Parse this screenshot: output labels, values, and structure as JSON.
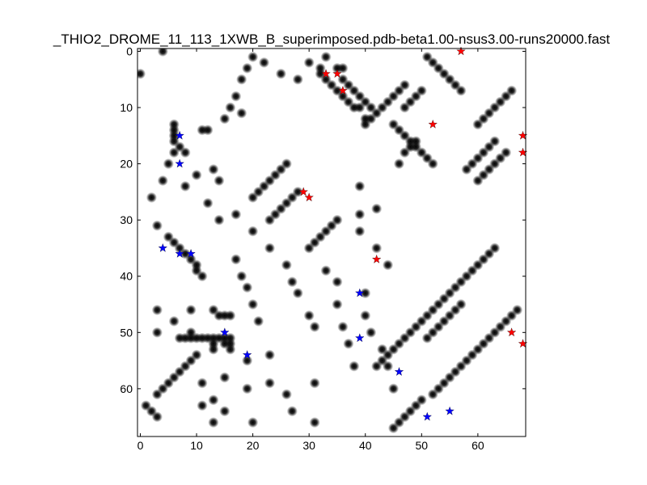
{
  "chart_data": {
    "type": "heatmap",
    "title": "_THIO2_DROME_11_113_1XWB_B_superimposed.pdb-beta1.00-nsus3.00-runs20000.fast",
    "xlim": [
      -0.5,
      68.5
    ],
    "ylim": [
      68.5,
      -0.5
    ],
    "y_inverted": true,
    "grid": false,
    "x_ticks": [
      0,
      10,
      20,
      30,
      40,
      50,
      60
    ],
    "y_ticks": [
      0,
      10,
      20,
      30,
      40,
      50,
      60
    ],
    "colormap": "gray_r",
    "contact_color": "#000000",
    "marker_colors": {
      "red": "#ff0000",
      "blue": "#0000ff"
    },
    "contacts": [
      [
        0,
        4
      ],
      [
        4,
        0
      ],
      [
        6,
        13
      ],
      [
        6,
        14
      ],
      [
        6,
        15
      ],
      [
        6,
        16
      ],
      [
        7,
        17
      ],
      [
        8,
        18
      ],
      [
        11,
        14
      ],
      [
        12,
        14
      ],
      [
        13,
        21
      ],
      [
        14,
        23
      ],
      [
        3,
        31
      ],
      [
        5,
        33
      ],
      [
        6,
        34
      ],
      [
        7,
        35
      ],
      [
        8,
        36
      ],
      [
        9,
        37
      ],
      [
        10,
        38
      ],
      [
        10,
        39
      ],
      [
        11,
        40
      ],
      [
        13,
        46
      ],
      [
        14,
        47
      ],
      [
        15,
        47
      ],
      [
        16,
        47
      ],
      [
        3,
        61
      ],
      [
        4,
        60
      ],
      [
        5,
        59
      ],
      [
        6,
        58
      ],
      [
        7,
        57
      ],
      [
        8,
        56
      ],
      [
        9,
        55
      ],
      [
        10,
        54
      ],
      [
        3,
        65
      ],
      [
        2,
        64
      ],
      [
        1,
        63
      ],
      [
        7,
        51
      ],
      [
        8,
        51
      ],
      [
        9,
        51
      ],
      [
        10,
        51
      ],
      [
        11,
        51
      ],
      [
        12,
        51
      ],
      [
        13,
        51
      ],
      [
        14,
        51
      ],
      [
        15,
        51
      ],
      [
        16,
        51
      ],
      [
        13,
        52
      ],
      [
        15,
        52
      ],
      [
        16,
        52
      ],
      [
        13,
        53
      ],
      [
        16,
        53
      ],
      [
        32,
        3
      ],
      [
        32,
        4
      ],
      [
        33,
        5
      ],
      [
        34,
        6
      ],
      [
        35,
        7
      ],
      [
        36,
        8
      ],
      [
        37,
        9
      ],
      [
        38,
        10
      ],
      [
        39,
        10
      ],
      [
        40,
        12
      ],
      [
        36,
        3
      ],
      [
        36,
        5
      ],
      [
        37,
        6
      ],
      [
        38,
        7
      ],
      [
        39,
        8
      ],
      [
        40,
        9
      ],
      [
        41,
        10
      ],
      [
        47,
        10
      ],
      [
        48,
        9
      ],
      [
        49,
        8
      ],
      [
        50,
        7
      ],
      [
        45,
        13
      ],
      [
        46,
        14
      ],
      [
        47,
        15
      ],
      [
        48,
        16
      ],
      [
        49,
        17
      ],
      [
        50,
        18
      ],
      [
        51,
        19
      ],
      [
        52,
        20
      ],
      [
        46,
        20
      ],
      [
        47,
        18
      ],
      [
        48,
        17
      ],
      [
        49,
        16
      ],
      [
        63,
        35
      ],
      [
        62,
        36
      ],
      [
        61,
        37
      ],
      [
        60,
        38
      ],
      [
        59,
        39
      ],
      [
        58,
        40
      ],
      [
        57,
        41
      ],
      [
        56,
        42
      ],
      [
        55,
        43
      ],
      [
        54,
        44
      ],
      [
        53,
        45
      ],
      [
        52,
        46
      ],
      [
        51,
        47
      ],
      [
        50,
        48
      ],
      [
        49,
        49
      ],
      [
        48,
        50
      ],
      [
        47,
        51
      ],
      [
        46,
        52
      ],
      [
        45,
        53
      ],
      [
        44,
        54
      ],
      [
        43,
        55
      ],
      [
        42,
        56
      ],
      [
        57,
        45
      ],
      [
        56,
        46
      ],
      [
        55,
        47
      ],
      [
        54,
        48
      ],
      [
        53,
        49
      ],
      [
        52,
        50
      ],
      [
        51,
        51
      ],
      [
        67,
        46
      ],
      [
        66,
        47
      ],
      [
        65,
        48
      ],
      [
        64,
        49
      ],
      [
        63,
        50
      ],
      [
        62,
        51
      ],
      [
        61,
        52
      ],
      [
        60,
        53
      ],
      [
        59,
        54
      ],
      [
        58,
        55
      ],
      [
        57,
        56
      ],
      [
        56,
        57
      ],
      [
        55,
        58
      ],
      [
        54,
        59
      ],
      [
        53,
        60
      ],
      [
        52,
        61
      ],
      [
        50,
        62
      ],
      [
        49,
        63
      ],
      [
        48,
        64
      ],
      [
        47,
        65
      ],
      [
        46,
        66
      ],
      [
        45,
        67
      ],
      [
        40,
        13
      ],
      [
        41,
        12
      ],
      [
        42,
        11
      ],
      [
        43,
        10
      ],
      [
        44,
        9
      ],
      [
        45,
        8
      ],
      [
        46,
        7
      ],
      [
        47,
        6
      ],
      [
        51,
        1
      ],
      [
        52,
        2
      ],
      [
        53,
        3
      ],
      [
        54,
        4
      ],
      [
        55,
        5
      ],
      [
        56,
        6
      ],
      [
        57,
        7
      ],
      [
        60,
        13
      ],
      [
        61,
        12
      ],
      [
        62,
        11
      ],
      [
        63,
        10
      ],
      [
        64,
        9
      ],
      [
        65,
        8
      ],
      [
        66,
        7
      ],
      [
        58,
        21
      ],
      [
        59,
        20
      ],
      [
        60,
        19
      ],
      [
        61,
        18
      ],
      [
        62,
        17
      ],
      [
        63,
        16
      ],
      [
        60,
        23
      ],
      [
        61,
        22
      ],
      [
        62,
        21
      ],
      [
        63,
        20
      ],
      [
        64,
        19
      ],
      [
        65,
        18
      ],
      [
        20,
        26
      ],
      [
        21,
        25
      ],
      [
        22,
        24
      ],
      [
        23,
        23
      ],
      [
        24,
        22
      ],
      [
        25,
        21
      ],
      [
        26,
        20
      ],
      [
        23,
        30
      ],
      [
        24,
        29
      ],
      [
        25,
        28
      ],
      [
        26,
        27
      ],
      [
        27,
        26
      ],
      [
        28,
        25
      ],
      [
        30,
        35
      ],
      [
        31,
        34
      ],
      [
        32,
        33
      ],
      [
        33,
        32
      ],
      [
        34,
        31
      ],
      [
        35,
        30
      ],
      [
        3,
        46
      ],
      [
        3,
        50
      ],
      [
        6,
        48
      ],
      [
        9,
        46
      ],
      [
        9,
        50
      ],
      [
        11,
        59
      ],
      [
        11,
        63
      ],
      [
        13,
        66
      ],
      [
        13,
        62
      ],
      [
        15,
        58
      ],
      [
        15,
        64
      ],
      [
        19,
        55
      ],
      [
        19,
        60
      ],
      [
        20,
        66
      ],
      [
        23,
        54
      ],
      [
        23,
        59
      ],
      [
        26,
        61
      ],
      [
        27,
        64
      ],
      [
        31,
        59
      ],
      [
        31,
        66
      ],
      [
        33,
        39
      ],
      [
        35,
        41
      ],
      [
        35,
        45
      ],
      [
        36,
        49
      ],
      [
        37,
        52
      ],
      [
        38,
        56
      ],
      [
        40,
        43
      ],
      [
        40,
        47
      ],
      [
        41,
        50
      ],
      [
        43,
        53
      ],
      [
        44,
        56
      ],
      [
        45,
        60
      ],
      [
        39,
        24
      ],
      [
        39,
        29
      ],
      [
        39,
        32
      ],
      [
        42,
        28
      ],
      [
        42,
        35
      ],
      [
        44,
        38
      ],
      [
        17,
        37
      ],
      [
        18,
        40
      ],
      [
        19,
        42
      ],
      [
        20,
        45
      ],
      [
        21,
        48
      ],
      [
        26,
        38
      ],
      [
        27,
        41
      ],
      [
        28,
        43
      ],
      [
        30,
        47
      ],
      [
        31,
        49
      ],
      [
        17,
        8
      ],
      [
        16,
        10
      ],
      [
        18,
        11
      ],
      [
        15,
        12
      ],
      [
        18,
        5
      ],
      [
        19,
        3
      ],
      [
        20,
        1
      ],
      [
        22,
        2
      ],
      [
        25,
        4
      ],
      [
        28,
        5
      ],
      [
        30,
        2
      ],
      [
        33,
        1
      ],
      [
        35,
        3
      ],
      [
        2,
        26
      ],
      [
        4,
        23
      ],
      [
        5,
        20
      ],
      [
        6,
        18
      ],
      [
        8,
        24
      ],
      [
        10,
        22
      ],
      [
        12,
        27
      ],
      [
        14,
        30
      ],
      [
        17,
        29
      ],
      [
        20,
        32
      ],
      [
        23,
        35
      ]
    ],
    "red_markers": [
      [
        57,
        0
      ],
      [
        33,
        4
      ],
      [
        35,
        4
      ],
      [
        36,
        7
      ],
      [
        52,
        13
      ],
      [
        68,
        15
      ],
      [
        68,
        18
      ],
      [
        29,
        25
      ],
      [
        30,
        26
      ],
      [
        42,
        37
      ],
      [
        66,
        50
      ],
      [
        68,
        52
      ]
    ],
    "blue_markers": [
      [
        7,
        15
      ],
      [
        7,
        20
      ],
      [
        4,
        35
      ],
      [
        7,
        36
      ],
      [
        9,
        36
      ],
      [
        39,
        43
      ],
      [
        15,
        50
      ],
      [
        39,
        51
      ],
      [
        19,
        54
      ],
      [
        46,
        57
      ],
      [
        55,
        64
      ],
      [
        51,
        65
      ]
    ]
  }
}
